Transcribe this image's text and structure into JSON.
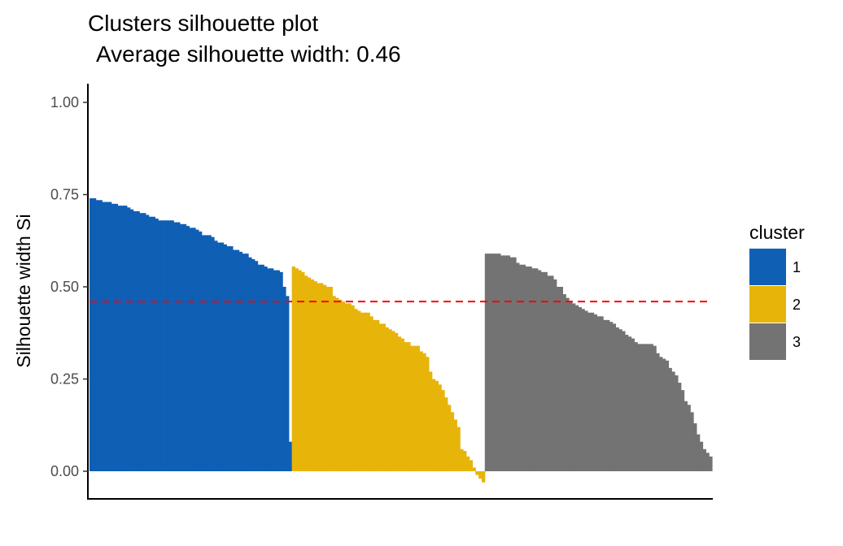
{
  "chart_data": {
    "type": "bar",
    "title": "Clusters silhouette plot",
    "subtitle": "Average silhouette width: 0.46",
    "ylabel": "Silhouette width Si",
    "xlabel": "",
    "ylim": [
      -0.07,
      1.05
    ],
    "yticks": [
      0,
      0.25,
      0.5,
      0.75,
      1
    ],
    "ytick_labels": [
      "0.00",
      "0.25",
      "0.50",
      "0.75",
      "1.00"
    ],
    "average_line": {
      "value": 0.46,
      "color": "#ff0000",
      "style": "dashed"
    },
    "grid": false,
    "legend": {
      "title": "cluster",
      "position": "right"
    },
    "series": [
      {
        "name": "1",
        "color": "#0f5fb5",
        "values": [
          0.74,
          0.74,
          0.735,
          0.735,
          0.73,
          0.73,
          0.73,
          0.725,
          0.725,
          0.72,
          0.72,
          0.72,
          0.715,
          0.71,
          0.705,
          0.705,
          0.7,
          0.7,
          0.695,
          0.69,
          0.69,
          0.685,
          0.68,
          0.68,
          0.68,
          0.68,
          0.68,
          0.675,
          0.675,
          0.67,
          0.67,
          0.665,
          0.66,
          0.66,
          0.655,
          0.65,
          0.64,
          0.64,
          0.64,
          0.635,
          0.625,
          0.62,
          0.62,
          0.615,
          0.61,
          0.61,
          0.6,
          0.6,
          0.595,
          0.59,
          0.59,
          0.58,
          0.575,
          0.57,
          0.56,
          0.56,
          0.555,
          0.55,
          0.55,
          0.545,
          0.545,
          0.54,
          0.5,
          0.475,
          0.08
        ]
      },
      {
        "name": "2",
        "color": "#e7b40a",
        "values": [
          0.555,
          0.55,
          0.545,
          0.54,
          0.53,
          0.525,
          0.52,
          0.515,
          0.51,
          0.51,
          0.505,
          0.5,
          0.5,
          0.475,
          0.47,
          0.465,
          0.46,
          0.455,
          0.455,
          0.45,
          0.44,
          0.435,
          0.43,
          0.43,
          0.43,
          0.42,
          0.41,
          0.41,
          0.4,
          0.4,
          0.39,
          0.385,
          0.38,
          0.375,
          0.365,
          0.36,
          0.35,
          0.35,
          0.34,
          0.34,
          0.34,
          0.325,
          0.32,
          0.31,
          0.27,
          0.25,
          0.245,
          0.235,
          0.22,
          0.2,
          0.18,
          0.16,
          0.14,
          0.12,
          0.06,
          0.055,
          0.04,
          0.03,
          0.01,
          -0.01,
          -0.02,
          -0.03
        ]
      },
      {
        "name": "3",
        "color": "#737373",
        "values": [
          0.59,
          0.59,
          0.59,
          0.59,
          0.59,
          0.585,
          0.585,
          0.585,
          0.58,
          0.58,
          0.565,
          0.56,
          0.56,
          0.555,
          0.555,
          0.55,
          0.55,
          0.545,
          0.54,
          0.54,
          0.53,
          0.53,
          0.52,
          0.5,
          0.5,
          0.48,
          0.47,
          0.46,
          0.455,
          0.45,
          0.445,
          0.44,
          0.435,
          0.43,
          0.43,
          0.425,
          0.42,
          0.42,
          0.41,
          0.41,
          0.405,
          0.4,
          0.39,
          0.385,
          0.38,
          0.37,
          0.365,
          0.36,
          0.35,
          0.345,
          0.345,
          0.345,
          0.345,
          0.345,
          0.34,
          0.32,
          0.31,
          0.305,
          0.3,
          0.28,
          0.27,
          0.26,
          0.24,
          0.22,
          0.19,
          0.18,
          0.16,
          0.13,
          0.1,
          0.08,
          0.06,
          0.05,
          0.04
        ]
      }
    ]
  }
}
